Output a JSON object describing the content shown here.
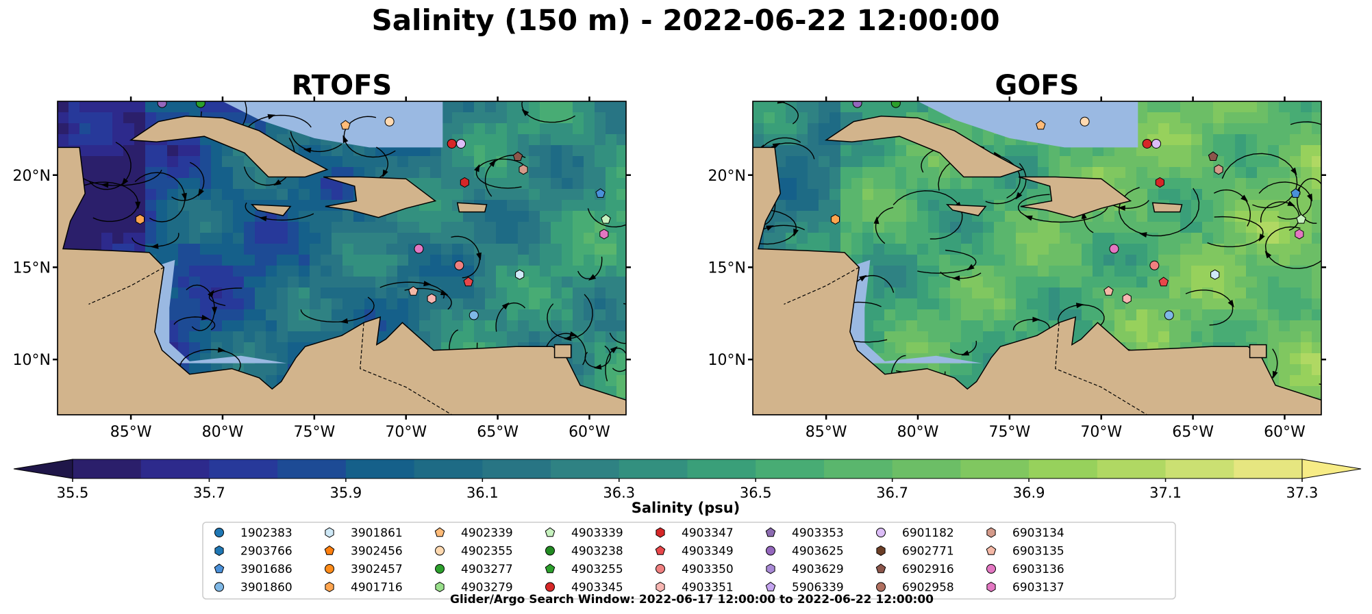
{
  "chart_data": {
    "type": "heatmap",
    "title": "Salinity (150 m) - 2022-06-22 12:00:00",
    "panels": [
      {
        "title": "RTOFS",
        "variant": "low"
      },
      {
        "title": "GOFS",
        "variant": "high"
      }
    ],
    "lon_range": [
      -89,
      -58
    ],
    "lat_range": [
      7,
      24
    ],
    "x_ticks": [
      {
        "value": -85,
        "label": "85°W"
      },
      {
        "value": -80,
        "label": "80°W"
      },
      {
        "value": -75,
        "label": "75°W"
      },
      {
        "value": -70,
        "label": "70°W"
      },
      {
        "value": -65,
        "label": "65°W"
      },
      {
        "value": -60,
        "label": "60°W"
      }
    ],
    "y_ticks": [
      {
        "value": 10,
        "label": "10°N"
      },
      {
        "value": 15,
        "label": "15°N"
      },
      {
        "value": 20,
        "label": "20°N"
      }
    ],
    "colorbar": {
      "label": "Salinity (psu)",
      "range": [
        35.5,
        37.3
      ],
      "step": 0.1,
      "extend": "both",
      "ticks": [
        "35.5",
        "35.7",
        "35.9",
        "36.1",
        "36.3",
        "36.5",
        "36.7",
        "36.9",
        "37.1",
        "37.3"
      ],
      "colors": [
        "#2b1f6b",
        "#2d2a8c",
        "#27399a",
        "#1d4b95",
        "#15608a",
        "#1e6b85",
        "#287584",
        "#2f8283",
        "#33907f",
        "#3a9f79",
        "#48ac74",
        "#5ab66d",
        "#6cbe66",
        "#80c760",
        "#97d15c",
        "#b0d863",
        "#cbe072",
        "#e6e680"
      ]
    },
    "extend_colors": {
      "low": "#1f1649",
      "high": "#f7ec86"
    },
    "land_color": "#d2b48c",
    "shelf_color": "#9ab9e2",
    "floats": [
      {
        "id": "1902383",
        "color": "#1f77b4",
        "marker": "circle",
        "lon": null,
        "lat": null
      },
      {
        "id": "2903766",
        "color": "#1f77b4",
        "marker": "hexagon",
        "lon": null,
        "lat": null
      },
      {
        "id": "3901686",
        "color": "#4a90d9",
        "marker": "pentagon",
        "lon": -59.4,
        "lat": 19.0
      },
      {
        "id": "3901860",
        "color": "#7fb8e6",
        "marker": "circle",
        "lon": -66.3,
        "lat": 12.4
      },
      {
        "id": "3901861",
        "color": "#cfe9f7",
        "marker": "hexagon",
        "lon": -63.8,
        "lat": 14.6
      },
      {
        "id": "3902456",
        "color": "#ff7f0e",
        "marker": "pentagon",
        "lon": null,
        "lat": null
      },
      {
        "id": "3902457",
        "color": "#ff8c1a",
        "marker": "circle",
        "lon": null,
        "lat": null
      },
      {
        "id": "4901716",
        "color": "#ffa54f",
        "marker": "hexagon",
        "lon": -84.5,
        "lat": 17.6
      },
      {
        "id": "4902339",
        "color": "#ffbb78",
        "marker": "pentagon",
        "lon": -73.3,
        "lat": 22.7
      },
      {
        "id": "4902355",
        "color": "#ffd9b0",
        "marker": "circle",
        "lon": -70.9,
        "lat": 22.9
      },
      {
        "id": "4903277",
        "color": "#2ca02c",
        "marker": "circle",
        "lon": -81.2,
        "lat": 23.9
      },
      {
        "id": "4903279",
        "color": "#98df8a",
        "marker": "hexagon",
        "lon": null,
        "lat": null
      },
      {
        "id": "4903339",
        "color": "#c7f2bf",
        "marker": "pentagon",
        "lon": -59.1,
        "lat": 17.6
      },
      {
        "id": "4903238",
        "color": "#228b22",
        "marker": "circle",
        "lon": null,
        "lat": null
      },
      {
        "id": "4903255",
        "color": "#2ca02c",
        "marker": "pentagon",
        "lon": null,
        "lat": null
      },
      {
        "id": "4903345",
        "color": "#d62728",
        "marker": "circle",
        "lon": -67.5,
        "lat": 21.7
      },
      {
        "id": "4903347",
        "color": "#d62728",
        "marker": "hexagon",
        "lon": -66.8,
        "lat": 19.6
      },
      {
        "id": "4903349",
        "color": "#e8474a",
        "marker": "pentagon",
        "lon": -66.6,
        "lat": 14.2
      },
      {
        "id": "4903350",
        "color": "#f08080",
        "marker": "circle",
        "lon": -67.1,
        "lat": 15.1
      },
      {
        "id": "4903351",
        "color": "#f7b6b2",
        "marker": "hexagon",
        "lon": -68.6,
        "lat": 13.3
      },
      {
        "id": "4903353",
        "color": "#8c6bb1",
        "marker": "pentagon",
        "lon": null,
        "lat": null
      },
      {
        "id": "4903625",
        "color": "#9467bd",
        "marker": "circle",
        "lon": -83.3,
        "lat": 23.9
      },
      {
        "id": "4903629",
        "color": "#a98ad6",
        "marker": "hexagon",
        "lon": null,
        "lat": null
      },
      {
        "id": "5906339",
        "color": "#c5a5f0",
        "marker": "pentagon",
        "lon": null,
        "lat": null
      },
      {
        "id": "6901182",
        "color": "#dcbdf7",
        "marker": "circle",
        "lon": -67.0,
        "lat": 21.7
      },
      {
        "id": "6902771",
        "color": "#6b3e26",
        "marker": "hexagon",
        "lon": null,
        "lat": null
      },
      {
        "id": "6902916",
        "color": "#8c564b",
        "marker": "pentagon",
        "lon": -63.9,
        "lat": 21.0
      },
      {
        "id": "6902958",
        "color": "#b07060",
        "marker": "circle",
        "lon": null,
        "lat": null
      },
      {
        "id": "6903134",
        "color": "#d49a8a",
        "marker": "hexagon",
        "lon": -63.6,
        "lat": 20.3
      },
      {
        "id": "6903135",
        "color": "#f4b8a6",
        "marker": "pentagon",
        "lon": -69.6,
        "lat": 13.7
      },
      {
        "id": "6903136",
        "color": "#e377c2",
        "marker": "circle",
        "lon": -69.3,
        "lat": 16.0
      },
      {
        "id": "6903137",
        "color": "#e377c2",
        "marker": "hexagon",
        "lon": -59.2,
        "lat": 16.8
      }
    ],
    "footer": "Glider/Argo Search Window: 2022-06-17 12:00:00 to 2022-06-22 12:00:00"
  }
}
